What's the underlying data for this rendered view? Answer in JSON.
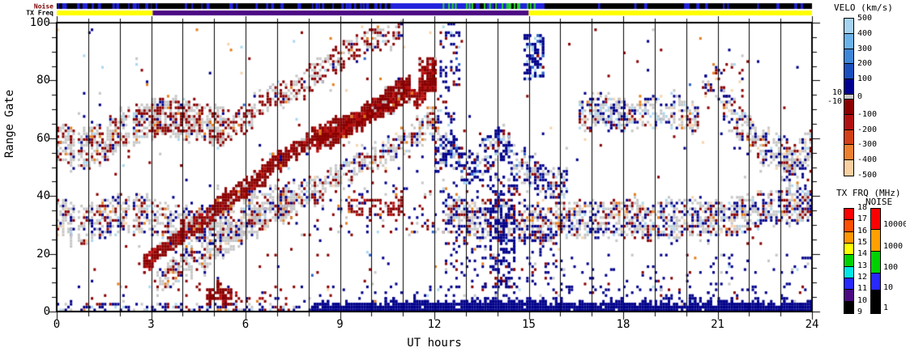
{
  "labels": {
    "strip_noise": "Noise",
    "strip_txfreq": "TX Freq",
    "velo_title": "VELO (km/s)",
    "txfrq_title": "TX FRQ (MHz)",
    "noise_title": "NOISE",
    "ylabel": "Range Gate",
    "xlabel": "UT hours"
  },
  "axes": {
    "x_tick_labels": [
      "0",
      "3",
      "6",
      "9",
      "12",
      "15",
      "18",
      "21",
      "24"
    ],
    "y_tick_labels": [
      "100",
      "80",
      "60",
      "40",
      "20",
      "0"
    ],
    "x_range": [
      0,
      24
    ],
    "y_range": [
      0,
      100
    ]
  },
  "colorbars": {
    "velo": {
      "right_labels": [
        "500",
        "400",
        "300",
        "200",
        "100",
        "0",
        "-100",
        "-200",
        "-300",
        "-400",
        "-500"
      ],
      "left_labels": [
        "10",
        "-10"
      ],
      "pos_colors": [
        "#A6D3F0",
        "#6CB2E8",
        "#3E86D8",
        "#1A50BE",
        "#000090"
      ],
      "zero_color": "#C8C8C8",
      "neg_colors": [
        "#8B0000",
        "#B01010",
        "#D24018",
        "#EC8030",
        "#F8CFA0"
      ]
    },
    "txfrq": {
      "labels": [
        "18",
        "17",
        "16",
        "15",
        "14",
        "13",
        "12",
        "11",
        "10",
        "9"
      ],
      "colors": [
        "#FF0000",
        "#FF5000",
        "#FF9600",
        "#FFFF00",
        "#00D200",
        "#00E6E6",
        "#2828FF",
        "#4B0A82",
        "#000000"
      ]
    },
    "noise": {
      "labels": [
        "10000",
        "1000",
        "100",
        "10",
        "1"
      ],
      "colors": [
        "#FF0000",
        "#FFA000",
        "#00D200",
        "#2828FF",
        "#000000"
      ],
      "heights": [
        26,
        27,
        27,
        21,
        28
      ]
    }
  },
  "chart_data": {
    "type": "heatmap",
    "title": "",
    "xlabel": "UT hours",
    "ylabel": "Range Gate",
    "xlim": [
      0,
      24
    ],
    "ylim": [
      0,
      100
    ],
    "grid": "vertical line every hour",
    "seed": 7,
    "palette": {
      "navy": "#00008B",
      "darkred": "#8B0000",
      "red": "#BE1010",
      "gray": "#C6C6C6",
      "lightblue": "#A9D7F2",
      "skyblue": "#6FB0E6",
      "midblue": "#2F64C8",
      "orange": "#E57E1E",
      "peach": "#F7D3AB"
    },
    "strips": {
      "noise": {
        "base": "#000000",
        "blue": "#2222DC",
        "green": "#28D428",
        "blue_tick_ranges": [
          [
            0,
            10.6,
            58
          ],
          [
            15.55,
            24,
            14
          ]
        ],
        "solid_blue": [
          10.6,
          15.5
        ],
        "green_ticks": [
          12.2,
          15.2,
          20
        ],
        "black_gaps": [
          12.6,
          15.45,
          9
        ]
      },
      "txfreq": {
        "segments": [
          {
            "from": 0,
            "to": 3.05,
            "color": "#FFFF00"
          },
          {
            "from": 3.05,
            "to": 15.0,
            "color": "#4B0A82"
          },
          {
            "from": 15.0,
            "to": 24,
            "color": "#FFFF00"
          }
        ]
      }
    },
    "features": [
      {
        "type": "speckle",
        "h": [
          0,
          24
        ],
        "g": [
          0,
          100
        ],
        "density": 0.008,
        "colors": {
          "darkred": 30,
          "navy": 30,
          "gray": 12,
          "lightblue": 8,
          "midblue": 4,
          "orange": 8,
          "peach": 8
        }
      },
      {
        "type": "speckle",
        "h": [
          0,
          13
        ],
        "g": [
          8,
          55
        ],
        "density": 0.006,
        "colors": {
          "darkred": 35,
          "navy": 35,
          "gray": 15,
          "orange": 8,
          "lightblue": 7
        }
      },
      {
        "type": "band",
        "pts": [
          [
            0,
            58
          ],
          [
            0.9,
            56
          ],
          [
            1.8,
            60
          ],
          [
            2.6,
            63
          ],
          [
            3.4,
            66
          ],
          [
            4.2,
            65
          ],
          [
            5,
            63
          ],
          [
            5.4,
            62
          ]
        ],
        "hw": 7,
        "density": 0.62,
        "colors": {
          "gray": 55,
          "darkred": 32,
          "navy": 6,
          "orange": 4,
          "lightblue": 3
        }
      },
      {
        "type": "blob",
        "h": [
          2.5,
          4.6
        ],
        "g": [
          62,
          72
        ],
        "density": 0.3,
        "colors": {
          "darkred": 70,
          "gray": 20,
          "navy": 5,
          "orange": 5
        }
      },
      {
        "type": "band",
        "pts": [
          [
            5.2,
            61
          ],
          [
            6.4,
            70
          ],
          [
            7.6,
            78
          ],
          [
            8.6,
            84
          ],
          [
            9.4,
            90
          ],
          [
            10.3,
            94
          ],
          [
            11,
            97
          ]
        ],
        "hw": 4,
        "density": 0.55,
        "colors": {
          "darkred": 55,
          "gray": 35,
          "navy": 5,
          "orange": 3,
          "lightblue": 2
        }
      },
      {
        "type": "band",
        "top": true,
        "pts": [
          [
            2.8,
            16
          ],
          [
            4,
            27
          ],
          [
            5,
            36
          ],
          [
            6,
            44
          ],
          [
            7,
            51
          ],
          [
            8,
            57
          ],
          [
            9,
            63
          ],
          [
            10,
            69
          ],
          [
            10.8,
            75
          ],
          [
            11.3,
            78
          ]
        ],
        "hw": 2.8,
        "density": 0.92,
        "colors": {
          "darkred": 80,
          "red": 12,
          "gray": 5,
          "orange": 2,
          "navy": 1
        }
      },
      {
        "type": "band",
        "pts": [
          [
            3.2,
            9
          ],
          [
            4.5,
            18
          ],
          [
            6,
            28
          ],
          [
            7.5,
            38
          ],
          [
            9,
            47
          ],
          [
            10.3,
            55
          ],
          [
            11.5,
            62
          ],
          [
            12.2,
            66
          ]
        ],
        "hw": 4.5,
        "density": 0.6,
        "colors": {
          "gray": 55,
          "navy": 16,
          "darkred": 20,
          "orange": 3,
          "lightblue": 3,
          "peach": 3
        }
      },
      {
        "type": "band",
        "top": true,
        "pts": [
          [
            8.3,
            58
          ],
          [
            9.3,
            63
          ],
          [
            10.2,
            69
          ],
          [
            10.9,
            74
          ],
          [
            11.2,
            77
          ],
          [
            11.5,
            73
          ],
          [
            11.8,
            78
          ],
          [
            12.05,
            83
          ]
        ],
        "hw": 2.6,
        "density": 0.9,
        "colors": {
          "darkred": 70,
          "red": 22,
          "orange": 3,
          "gray": 5
        }
      },
      {
        "type": "blob",
        "top": true,
        "h": [
          11.5,
          12.05
        ],
        "g": [
          76,
          88
        ],
        "density": 0.7,
        "colors": {
          "darkred": 75,
          "red": 20,
          "gray": 5
        }
      },
      {
        "type": "band",
        "pts": [
          [
            0,
            32
          ],
          [
            1,
            30
          ],
          [
            2,
            33
          ],
          [
            3,
            32
          ],
          [
            4,
            27
          ],
          [
            5,
            28
          ],
          [
            6,
            33
          ],
          [
            7,
            36
          ],
          [
            7.6,
            38
          ]
        ],
        "hw": 7,
        "density": 0.6,
        "colors": {
          "gray": 52,
          "navy": 18,
          "darkred": 18,
          "orange": 4,
          "lightblue": 4,
          "peach": 4
        }
      },
      {
        "type": "band",
        "top": true,
        "pts": [
          [
            12.05,
            52
          ],
          [
            12.5,
            58
          ],
          [
            13,
            50
          ],
          [
            13.5,
            52
          ],
          [
            14,
            58
          ],
          [
            14.4,
            56
          ]
        ],
        "hw": 6.5,
        "density": 0.55,
        "colors": {
          "navy": 58,
          "gray": 18,
          "darkred": 12,
          "lightblue": 7,
          "midblue": 5
        }
      },
      {
        "type": "band",
        "pts": [
          [
            14.4,
            54
          ],
          [
            15,
            48
          ],
          [
            15.6,
            44
          ],
          [
            16.3,
            42
          ]
        ],
        "hw": 6,
        "density": 0.5,
        "colors": {
          "navy": 45,
          "gray": 35,
          "darkred": 10,
          "lightblue": 6,
          "midblue": 4
        }
      },
      {
        "type": "blob",
        "h": [
          12.2,
          12.8
        ],
        "g": [
          76,
          100
        ],
        "density": 0.3,
        "colors": {
          "navy": 75,
          "darkred": 10,
          "lightblue": 10,
          "midblue": 5
        }
      },
      {
        "type": "blob",
        "top": true,
        "h": [
          14.9,
          15.55
        ],
        "g": [
          80,
          96
        ],
        "density": 0.55,
        "colors": {
          "navy": 72,
          "lightblue": 12,
          "midblue": 8,
          "darkred": 8
        }
      },
      {
        "type": "blob",
        "h": [
          12.15,
          12.7
        ],
        "g": [
          60,
          75
        ],
        "density": 0.18,
        "colors": {
          "navy": 70,
          "darkred": 15,
          "lightblue": 15
        }
      },
      {
        "type": "band",
        "pts": [
          [
            16.6,
            67
          ],
          [
            17.4,
            70
          ],
          [
            18.2,
            66
          ],
          [
            19,
            69
          ],
          [
            19.8,
            68
          ],
          [
            20.4,
            66
          ]
        ],
        "hw": 5.5,
        "density": 0.55,
        "colors": {
          "gray": 48,
          "navy": 22,
          "darkred": 12,
          "lightblue": 8,
          "orange": 4,
          "peach": 6
        }
      },
      {
        "type": "blob",
        "h": [
          17.2,
          18.1
        ],
        "g": [
          62,
          74
        ],
        "density": 0.25,
        "colors": {
          "navy": 55,
          "gray": 25,
          "darkred": 10,
          "lightblue": 10
        }
      },
      {
        "type": "blob",
        "h": [
          20.5,
          21.9
        ],
        "g": [
          70,
          86
        ],
        "density": 0.22,
        "colors": {
          "darkred": 38,
          "navy": 34,
          "orange": 8,
          "lightblue": 8,
          "gray": 8,
          "peach": 4
        }
      },
      {
        "type": "band",
        "pts": [
          [
            21.2,
            70
          ],
          [
            22,
            62
          ],
          [
            22.8,
            55
          ],
          [
            23.4,
            52
          ],
          [
            24,
            56
          ]
        ],
        "hw": 6,
        "density": 0.55,
        "colors": {
          "gray": 46,
          "navy": 24,
          "darkred": 14,
          "lightblue": 6,
          "orange": 4,
          "peach": 6
        }
      },
      {
        "type": "band",
        "pts": [
          [
            12.4,
            34
          ],
          [
            13.5,
            32
          ],
          [
            14.5,
            34
          ],
          [
            15.5,
            31
          ],
          [
            16.5,
            34
          ],
          [
            17.5,
            32
          ],
          [
            18.5,
            33
          ],
          [
            19.5,
            31
          ],
          [
            20.5,
            33
          ],
          [
            21.5,
            32
          ],
          [
            22.5,
            34
          ],
          [
            23.2,
            33
          ],
          [
            24,
            34
          ]
        ],
        "hw": 6.5,
        "density": 0.6,
        "colors": {
          "gray": 42,
          "navy": 28,
          "darkred": 16,
          "orange": 4,
          "lightblue": 5,
          "peach": 5
        }
      },
      {
        "type": "blob",
        "h": [
          12.3,
          16.2
        ],
        "g": [
          4,
          46
        ],
        "density": 0.12,
        "colors": {
          "navy": 70,
          "darkred": 18,
          "gray": 6,
          "orange": 3,
          "lightblue": 3
        }
      },
      {
        "type": "blob",
        "top": true,
        "h": [
          13.75,
          14.55
        ],
        "g": [
          8,
          48
        ],
        "density": 0.38,
        "colors": {
          "navy": 80,
          "darkred": 12,
          "gray": 4,
          "midblue": 4
        }
      },
      {
        "type": "blob",
        "h": [
          16.2,
          24
        ],
        "g": [
          3,
          20
        ],
        "density": 0.055,
        "colors": {
          "navy": 75,
          "darkred": 12,
          "gray": 6,
          "orange": 4,
          "lightblue": 3
        }
      },
      {
        "type": "blob",
        "h": [
          9.3,
          11
        ],
        "g": [
          33,
          39
        ],
        "density": 0.4,
        "colors": {
          "darkred": 78,
          "red": 12,
          "gray": 6,
          "navy": 4
        }
      },
      {
        "type": "blob",
        "top": true,
        "h": [
          4.75,
          5.6
        ],
        "g": [
          2,
          8
        ],
        "density": 0.7,
        "colors": {
          "darkred": 88,
          "red": 12
        }
      },
      {
        "type": "blob",
        "top": true,
        "h": [
          5,
          5.45
        ],
        "g": [
          8,
          11
        ],
        "density": 0.5,
        "colors": {
          "darkred": 100
        }
      },
      {
        "type": "blob",
        "h": [
          5.6,
          6.7
        ],
        "g": [
          3,
          7
        ],
        "density": 0.18,
        "colors": {
          "darkred": 85,
          "red": 15
        }
      },
      {
        "type": "blob",
        "h": [
          7.5,
          12.4
        ],
        "g": [
          26,
          46
        ],
        "density": 0.1,
        "colors": {
          "navy": 35,
          "darkred": 35,
          "gray": 20,
          "orange": 5,
          "lightblue": 5
        }
      },
      {
        "type": "blob",
        "h": [
          0,
          8.1
        ],
        "g": [
          0,
          2.2
        ],
        "density": 0.4,
        "colors": {
          "navy": 45,
          "darkred": 18,
          "gray": 18,
          "orange": 6,
          "lightblue": 8,
          "peach": 5
        }
      },
      {
        "type": "blob",
        "h": [
          0,
          8.1
        ],
        "g": [
          2,
          9
        ],
        "density": 0.05,
        "colors": {
          "navy": 45,
          "darkred": 25,
          "gray": 15,
          "orange": 5,
          "lightblue": 10
        }
      },
      {
        "type": "bottomstrip",
        "top": true,
        "h": [
          8.1,
          24
        ]
      },
      {
        "type": "blob",
        "h": [
          8.1,
          24
        ],
        "g": [
          2,
          9
        ],
        "density": 0.08,
        "colors": {
          "navy": 88,
          "darkred": 6,
          "lightblue": 6
        }
      },
      {
        "type": "blob",
        "h": [
          23,
          24
        ],
        "g": [
          40,
          55
        ],
        "density": 0.3,
        "colors": {
          "gray": 40,
          "navy": 30,
          "darkred": 20,
          "lightblue": 5,
          "orange": 5
        }
      }
    ]
  }
}
